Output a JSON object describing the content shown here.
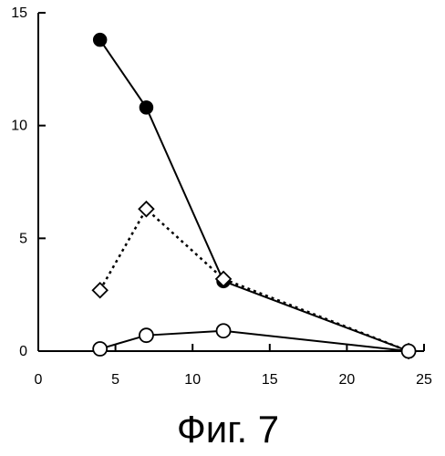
{
  "figure": {
    "caption": "Фиг. 7"
  },
  "chart_data": {
    "type": "line",
    "title": "",
    "xlabel": "",
    "ylabel": "",
    "xlim": [
      0,
      25
    ],
    "ylim": [
      0,
      15
    ],
    "x_ticks": [
      0,
      5,
      10,
      15,
      20,
      25
    ],
    "y_ticks": [
      0,
      5,
      10,
      15
    ],
    "grid": false,
    "legend": "none",
    "series": [
      {
        "marker": "filled-circle",
        "line_style": "solid",
        "color": "#000000",
        "points": [
          {
            "x": 4,
            "y": 13.8
          },
          {
            "x": 7,
            "y": 10.8
          },
          {
            "x": 12,
            "y": 3.1
          },
          {
            "x": 24,
            "y": 0
          }
        ]
      },
      {
        "marker": "open-diamond",
        "line_style": "dotted",
        "color": "#000000",
        "points": [
          {
            "x": 4,
            "y": 2.7
          },
          {
            "x": 7,
            "y": 6.3
          },
          {
            "x": 12,
            "y": 3.2
          },
          {
            "x": 24,
            "y": 0
          }
        ]
      },
      {
        "marker": "open-circle",
        "line_style": "solid",
        "color": "#000000",
        "points": [
          {
            "x": 4,
            "y": 0.1
          },
          {
            "x": 7,
            "y": 0.7
          },
          {
            "x": 12,
            "y": 0.9
          },
          {
            "x": 24,
            "y": 0
          }
        ]
      }
    ]
  }
}
